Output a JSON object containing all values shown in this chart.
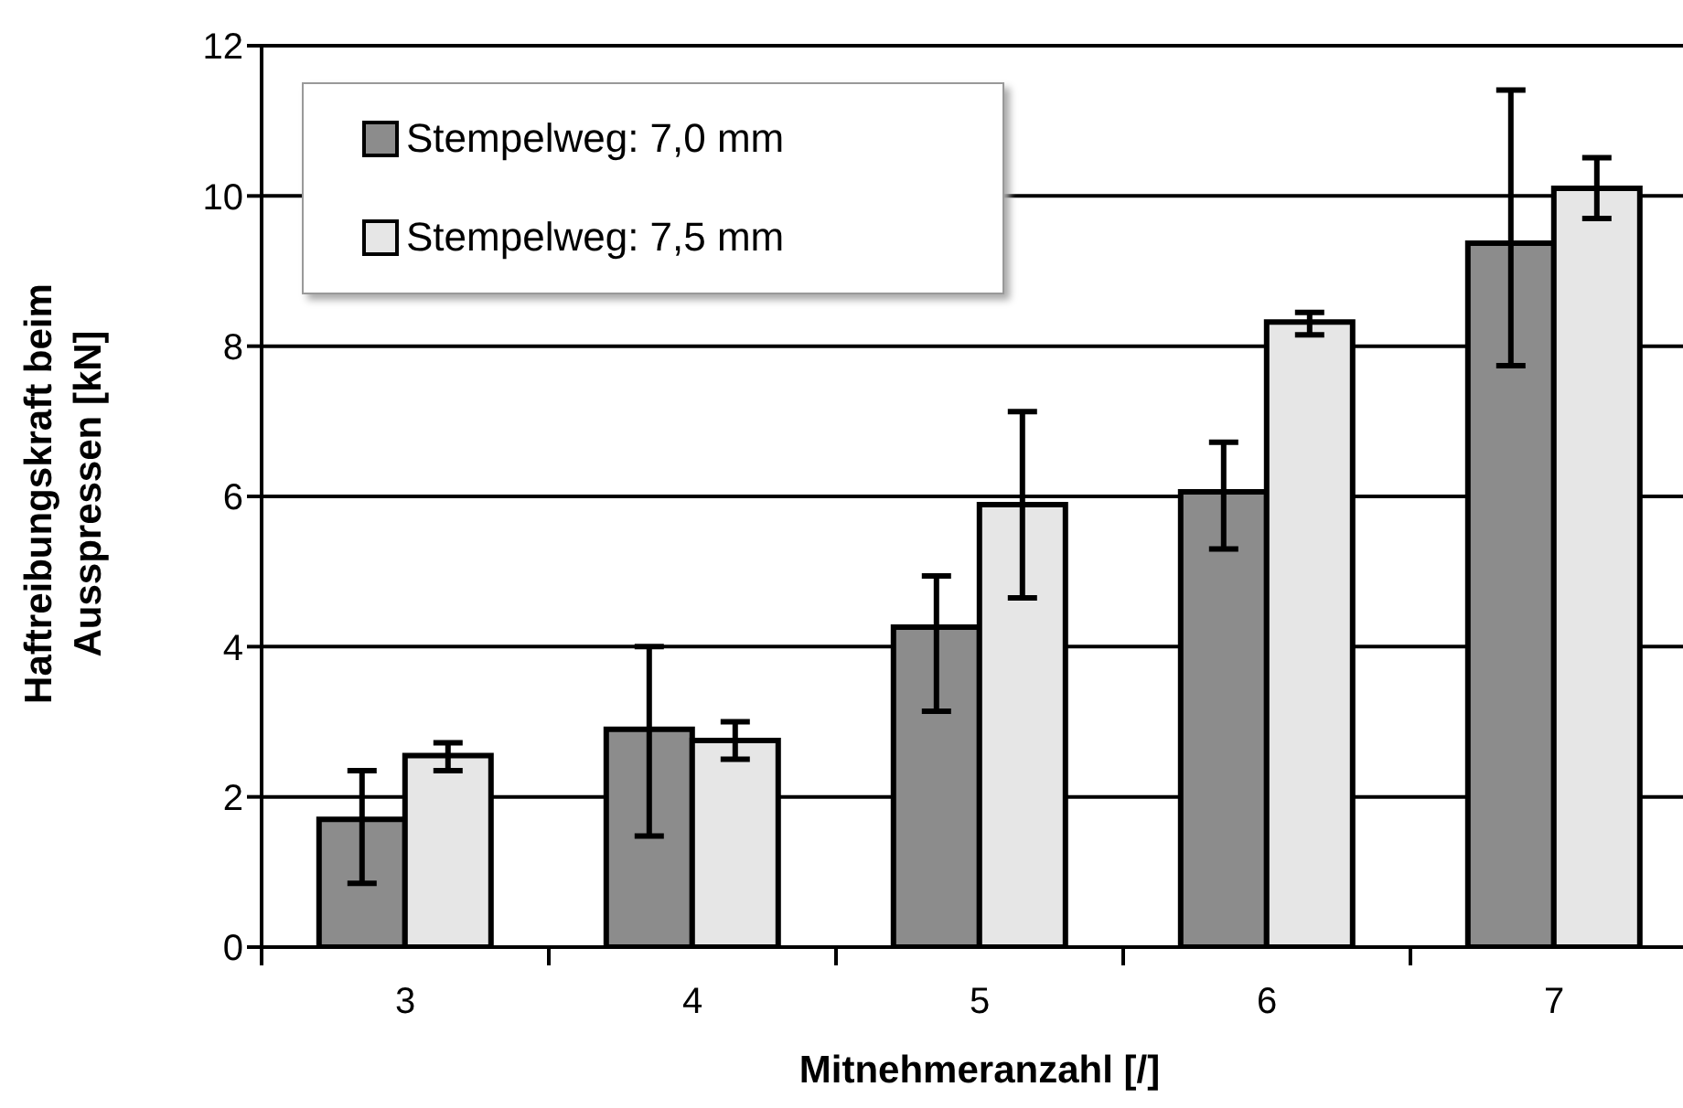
{
  "chart_data": {
    "type": "bar",
    "xlabel": "Mitnehmeranzahl [/]",
    "ylabel": "Haftreibungskraft beim Ausspressen [kN]",
    "categories": [
      "3",
      "4",
      "5",
      "6",
      "7"
    ],
    "series": [
      {
        "name": "Stempelweg: 7,0 mm",
        "color": "#8c8c8c",
        "values": [
          1.7,
          2.9,
          4.26,
          6.06,
          9.37
        ],
        "errors": [
          [
            0.85,
            2.35
          ],
          [
            1.48,
            4.0
          ],
          [
            3.14,
            4.94
          ],
          [
            5.3,
            6.72
          ],
          [
            7.74,
            11.41
          ]
        ]
      },
      {
        "name": "Stempelweg: 7,5 mm",
        "color": "#e6e6e6",
        "values": [
          2.55,
          2.75,
          5.89,
          8.32,
          10.1
        ],
        "errors": [
          [
            2.35,
            2.72
          ],
          [
            2.5,
            3.0
          ],
          [
            4.65,
            7.13
          ],
          [
            8.15,
            8.45
          ],
          [
            9.7,
            10.51
          ]
        ]
      }
    ],
    "ylim": [
      0,
      12
    ],
    "yticks": [
      0,
      2,
      4,
      6,
      8,
      10,
      12
    ],
    "grid": "y",
    "legend": "top left"
  }
}
